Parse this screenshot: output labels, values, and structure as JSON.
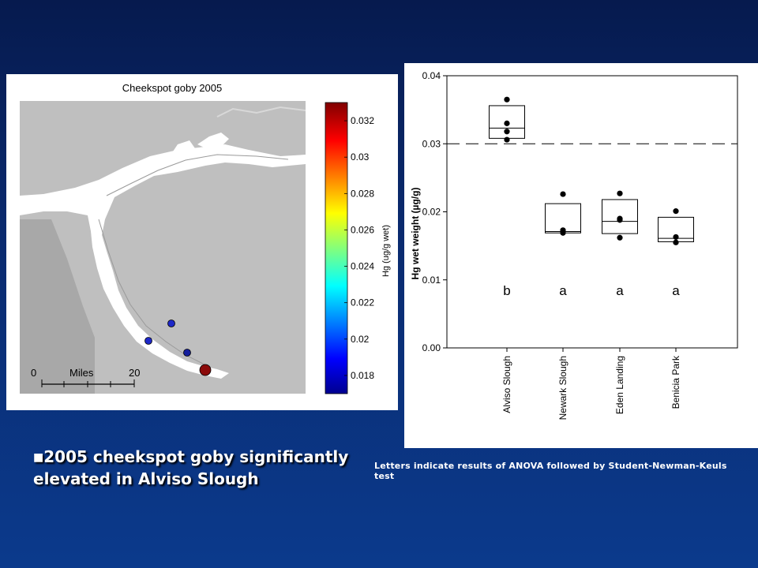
{
  "slide": {
    "bullet": "2005 cheekspot goby significantly elevated in Alviso Slough",
    "note": "Letters indicate results of ANOVA followed by Student-Newman-Keuls test"
  },
  "map": {
    "title": "Cheekspot goby 2005",
    "scale_labels": [
      "0",
      "Miles",
      "20"
    ],
    "colorbar": {
      "label": "Hg (ug/g wet)",
      "ticks": [
        "0.032",
        "0.03",
        "0.028",
        "0.026",
        "0.024",
        "0.022",
        "0.02",
        "0.018"
      ],
      "range": [
        0.017,
        0.033
      ]
    },
    "sample_points": [
      {
        "site": "Newark Slough",
        "value": 0.0185,
        "color": "#1e28c8"
      },
      {
        "site": "Eden Landing",
        "value": 0.0188,
        "color": "#1e28c8"
      },
      {
        "site": "Benicia Park",
        "value": 0.0175,
        "color": "#141e9c"
      },
      {
        "site": "Alviso Slough",
        "value": 0.033,
        "color": "#8b0a0a"
      }
    ]
  },
  "chart_data": {
    "type": "box",
    "ylabel": "Hg wet weight (µg/g)",
    "ylim": [
      0,
      0.04
    ],
    "yticks": [
      "0.00",
      "0.01",
      "0.02",
      "0.03",
      "0.04"
    ],
    "categories": [
      "Alviso Slough",
      "Newark Slough",
      "Eden Landing",
      "Benicia Park"
    ],
    "boxes": [
      {
        "q1": 0.0308,
        "median": 0.0323,
        "q3": 0.0356,
        "points": [
          0.0365,
          0.033,
          0.0318,
          0.0306
        ],
        "group": "b"
      },
      {
        "q1": 0.0169,
        "median": 0.0171,
        "q3": 0.0212,
        "points": [
          0.0226,
          0.0173,
          0.0169
        ],
        "group": "a"
      },
      {
        "q1": 0.0168,
        "median": 0.0186,
        "q3": 0.0218,
        "points": [
          0.0227,
          0.019,
          0.0188,
          0.0162
        ],
        "group": "a"
      },
      {
        "q1": 0.0156,
        "median": 0.0161,
        "q3": 0.0192,
        "points": [
          0.0201,
          0.0163,
          0.0155
        ],
        "group": "a"
      }
    ],
    "reference_line": 0.03,
    "reference_style": "dashed",
    "grid": false
  }
}
